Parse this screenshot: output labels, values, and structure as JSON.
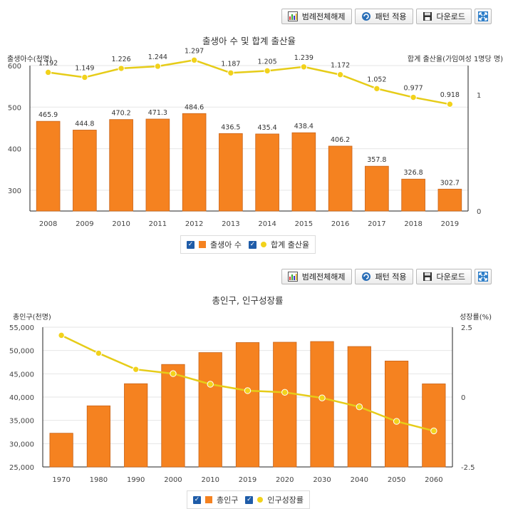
{
  "toolbar": {
    "legend_toggle_label": "범례전체해제",
    "pattern_label": "패턴 적용",
    "download_label": "다운로드"
  },
  "colors": {
    "bar": "#f58220",
    "bar_stroke": "#c8641a",
    "line": "#e6cc18",
    "point": "#f2d21b",
    "grid": "#e6e6e6",
    "checkbox": "#1f5ca8"
  },
  "chart_data": [
    {
      "type": "bar+line",
      "title": "출생아 수 및 합계 출산율",
      "ylabel_left": "출생아수(천명)",
      "ylabel_right": "합계 출산율(가임여성 1명당 명)",
      "categories": [
        "2008",
        "2009",
        "2010",
        "2011",
        "2012",
        "2013",
        "2014",
        "2015",
        "2016",
        "2017",
        "2018",
        "2019"
      ],
      "series": [
        {
          "name": "출생아 수",
          "type": "bar",
          "axis": "left",
          "values": [
            465.9,
            444.8,
            470.2,
            471.3,
            484.6,
            436.5,
            435.4,
            438.4,
            406.2,
            357.8,
            326.8,
            302.7
          ],
          "labels": [
            "465.9",
            "444.8",
            "470.2",
            "471.3",
            "484.6",
            "436.5",
            "435.4",
            "438.4",
            "406.2",
            "357.8",
            "326.8",
            "302.7"
          ]
        },
        {
          "name": "합계 출산율",
          "type": "line",
          "axis": "right",
          "values": [
            1.192,
            1.149,
            1.226,
            1.244,
            1.297,
            1.187,
            1.205,
            1.239,
            1.172,
            1.052,
            0.977,
            0.918
          ],
          "labels": [
            "1.192",
            "1.149",
            "1.226",
            "1.244",
            "1.297",
            "1.187",
            "1.205",
            "1.239",
            "1.172",
            "1.052",
            "0.977",
            "0.918"
          ]
        }
      ],
      "left_axis": {
        "min": 250,
        "max": 600,
        "ticks": [
          300,
          400,
          500,
          600
        ],
        "tick_labels": [
          "300",
          "400",
          "500",
          "600"
        ]
      },
      "right_axis": {
        "min": 0,
        "max": 1.25,
        "ticks": [
          0,
          1
        ],
        "tick_labels": [
          "0",
          "1"
        ]
      },
      "legend": [
        "출생아 수",
        "합계 출산율"
      ]
    },
    {
      "type": "bar+line",
      "title": "총인구, 인구성장률",
      "ylabel_left": "총인구(천명)",
      "ylabel_right": "성장률(%)",
      "categories": [
        "1970",
        "1980",
        "1990",
        "2000",
        "2010",
        "2019",
        "2020",
        "2030",
        "2040",
        "2050",
        "2060"
      ],
      "series": [
        {
          "name": "총인구",
          "type": "bar",
          "axis": "left",
          "values": [
            32241,
            38124,
            42869,
            47008,
            49554,
            51709,
            51781,
            51927,
            50855,
            47745,
            42838
          ]
        },
        {
          "name": "인구성장률",
          "type": "line",
          "axis": "right",
          "values": [
            2.21,
            1.57,
            0.99,
            0.84,
            0.46,
            0.23,
            0.17,
            -0.03,
            -0.35,
            -0.87,
            -1.21
          ]
        }
      ],
      "left_axis": {
        "min": 25000,
        "max": 55000,
        "ticks": [
          25000,
          30000,
          35000,
          40000,
          45000,
          50000,
          55000
        ],
        "tick_labels": [
          "25,000",
          "30,000",
          "35,000",
          "40,000",
          "45,000",
          "50,000",
          "55,000"
        ]
      },
      "right_axis": {
        "min": -2.5,
        "max": 2.5,
        "ticks": [
          -2.5,
          0,
          2.5
        ],
        "tick_labels": [
          "-2.5",
          "0",
          "2.5"
        ]
      },
      "legend": [
        "총인구",
        "인구성장률"
      ]
    }
  ]
}
